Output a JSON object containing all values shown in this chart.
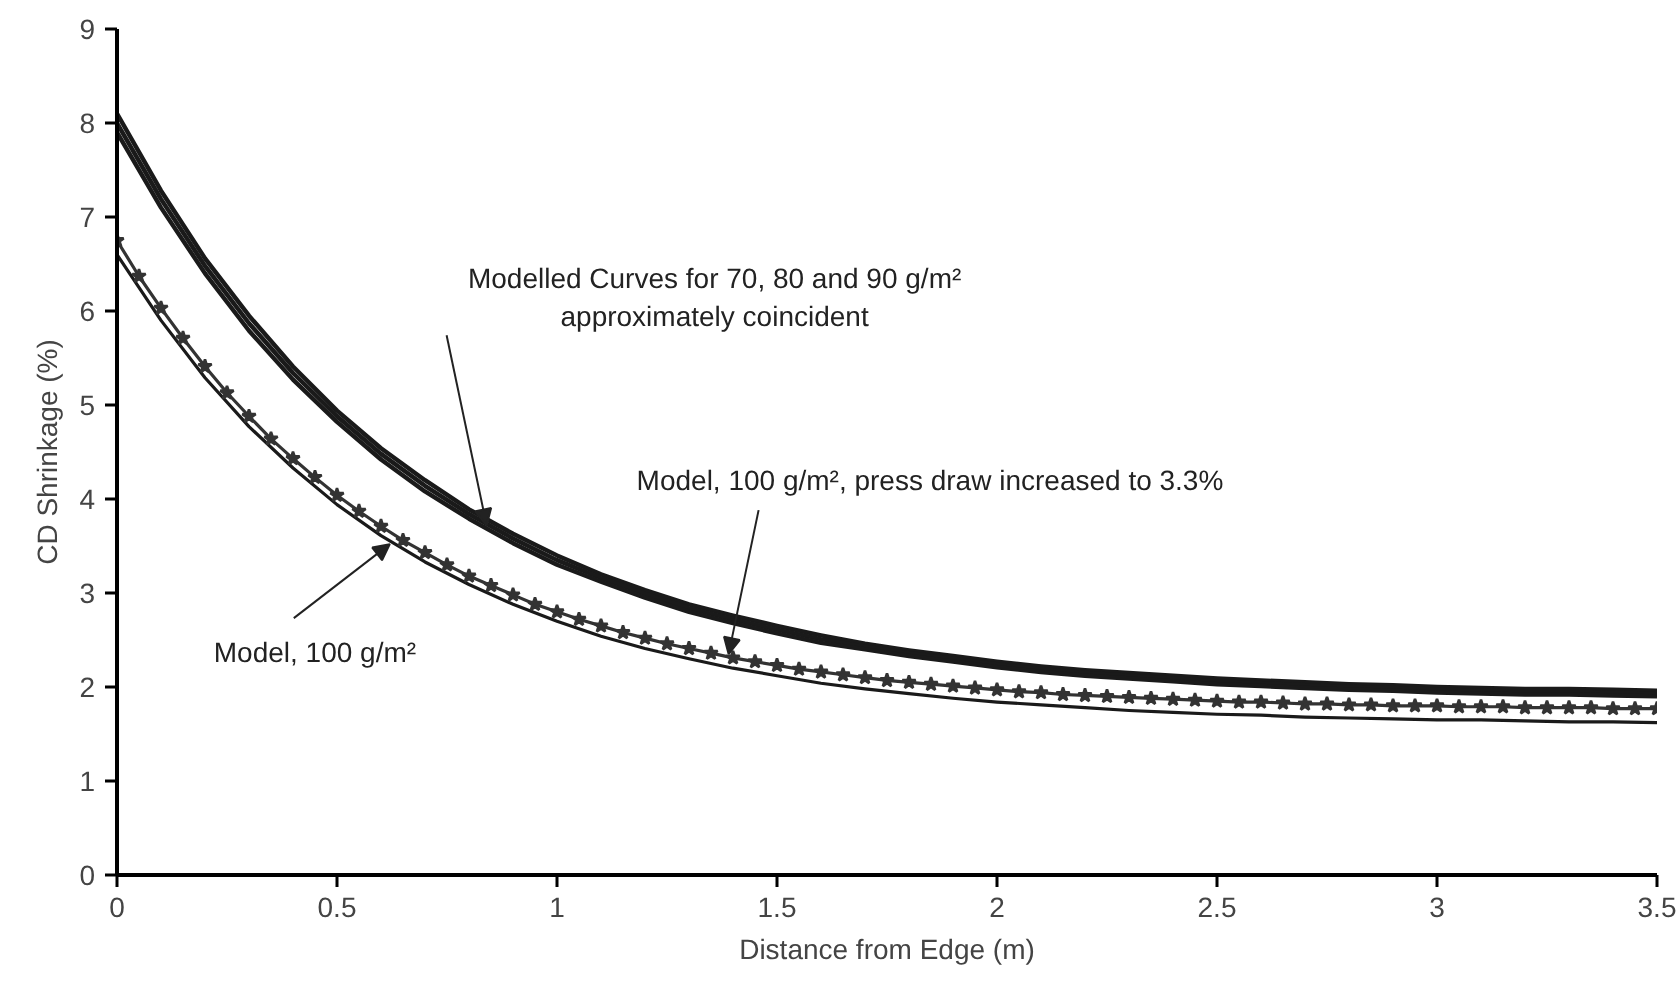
{
  "chart_data": {
    "type": "line",
    "xlabel": "Distance from Edge (m)",
    "ylabel": "CD Shrinkage (%)",
    "xlim": [
      0,
      3.5
    ],
    "ylim": [
      0,
      9
    ],
    "xticks": [
      0,
      0.5,
      1,
      1.5,
      2,
      2.5,
      3,
      3.5
    ],
    "yticks": [
      0,
      1,
      2,
      3,
      4,
      5,
      6,
      7,
      8,
      9
    ],
    "grid": false,
    "marker": "none",
    "line_style": "solid",
    "x": [
      0,
      0.1,
      0.2,
      0.3,
      0.4,
      0.5,
      0.6,
      0.7,
      0.8,
      0.9,
      1.0,
      1.1,
      1.2,
      1.3,
      1.4,
      1.5,
      1.6,
      1.7,
      1.8,
      1.9,
      2.0,
      2.1,
      2.2,
      2.3,
      2.4,
      2.5,
      2.6,
      2.7,
      2.8,
      2.9,
      3.0,
      3.1,
      3.2,
      3.3,
      3.4,
      3.5
    ],
    "series": [
      {
        "color": "#1a1a1a",
        "values": [
          8.1,
          7.28,
          6.56,
          5.95,
          5.41,
          4.94,
          4.54,
          4.2,
          3.89,
          3.63,
          3.4,
          3.2,
          3.03,
          2.88,
          2.76,
          2.65,
          2.55,
          2.46,
          2.39,
          2.33,
          2.27,
          2.22,
          2.18,
          2.15,
          2.12,
          2.09,
          2.07,
          2.05,
          2.03,
          2.02,
          2.0,
          1.99,
          1.98,
          1.98,
          1.97,
          1.96
        ]
      },
      {
        "color": "#1a1a1a",
        "values": [
          8.0,
          7.19,
          6.48,
          5.87,
          5.34,
          4.88,
          4.48,
          4.14,
          3.84,
          3.58,
          3.35,
          3.16,
          2.99,
          2.84,
          2.72,
          2.61,
          2.51,
          2.43,
          2.36,
          2.3,
          2.24,
          2.19,
          2.15,
          2.12,
          2.09,
          2.06,
          2.04,
          2.02,
          2.0,
          1.99,
          1.97,
          1.96,
          1.95,
          1.95,
          1.94,
          1.93
        ]
      },
      {
        "color": "#1a1a1a",
        "values": [
          7.9,
          7.1,
          6.4,
          5.79,
          5.27,
          4.82,
          4.42,
          4.08,
          3.79,
          3.53,
          3.3,
          3.12,
          2.95,
          2.8,
          2.68,
          2.57,
          2.47,
          2.4,
          2.33,
          2.27,
          2.21,
          2.16,
          2.12,
          2.09,
          2.06,
          2.03,
          2.01,
          1.99,
          1.97,
          1.96,
          1.94,
          1.93,
          1.92,
          1.92,
          1.91,
          1.9
        ]
      },
      {
        "color": "#1a1a1a",
        "values": [
          6.6,
          5.9,
          5.29,
          4.77,
          4.33,
          3.94,
          3.61,
          3.33,
          3.09,
          2.88,
          2.7,
          2.54,
          2.41,
          2.3,
          2.2,
          2.12,
          2.04,
          1.98,
          1.93,
          1.88,
          1.84,
          1.81,
          1.78,
          1.75,
          1.73,
          1.71,
          1.7,
          1.68,
          1.67,
          1.66,
          1.65,
          1.65,
          1.64,
          1.63,
          1.63,
          1.62
        ]
      },
      {
        "color": "#333333",
        "marker": "star",
        "x": [
          0,
          0.05,
          0.1,
          0.15,
          0.2,
          0.25,
          0.3,
          0.35,
          0.4,
          0.45,
          0.5,
          0.55,
          0.6,
          0.65,
          0.7,
          0.75,
          0.8,
          0.85,
          0.9,
          0.95,
          1.0,
          1.05,
          1.1,
          1.15,
          1.2,
          1.25,
          1.3,
          1.35,
          1.4,
          1.45,
          1.5,
          1.55,
          1.6,
          1.65,
          1.7,
          1.75,
          1.8,
          1.85,
          1.9,
          1.95,
          2.0,
          2.05,
          2.1,
          2.15,
          2.2,
          2.25,
          2.3,
          2.35,
          2.4,
          2.45,
          2.5,
          2.55,
          2.6,
          2.65,
          2.7,
          2.75,
          2.8,
          2.85,
          2.9,
          2.95,
          3.0,
          3.05,
          3.1,
          3.15,
          3.2,
          3.25,
          3.3,
          3.35,
          3.4,
          3.45,
          3.5
        ],
        "values": [
          6.75,
          6.37,
          6.03,
          5.71,
          5.41,
          5.13,
          4.88,
          4.64,
          4.43,
          4.23,
          4.04,
          3.87,
          3.71,
          3.56,
          3.43,
          3.3,
          3.18,
          3.08,
          2.98,
          2.88,
          2.8,
          2.72,
          2.65,
          2.58,
          2.52,
          2.46,
          2.41,
          2.36,
          2.31,
          2.27,
          2.23,
          2.19,
          2.16,
          2.13,
          2.1,
          2.07,
          2.05,
          2.03,
          2.01,
          1.99,
          1.97,
          1.95,
          1.94,
          1.92,
          1.91,
          1.9,
          1.89,
          1.88,
          1.87,
          1.86,
          1.85,
          1.84,
          1.84,
          1.83,
          1.82,
          1.82,
          1.81,
          1.81,
          1.8,
          1.8,
          1.8,
          1.79,
          1.79,
          1.79,
          1.78,
          1.78,
          1.78,
          1.78,
          1.77,
          1.77,
          1.77
        ]
      }
    ],
    "annotations": [
      {
        "text": "Modelled Curves for 70, 80 and 90 g/m²\napproximately coincident",
        "x": 0.84,
        "y": 3.72
      },
      {
        "text": "Model, 100 g/m², press draw increased to 3.3%",
        "x": 1.39,
        "y": 2.35
      },
      {
        "text": "Model, 100 g/m²",
        "x": 0.62,
        "y": 3.52
      }
    ]
  }
}
